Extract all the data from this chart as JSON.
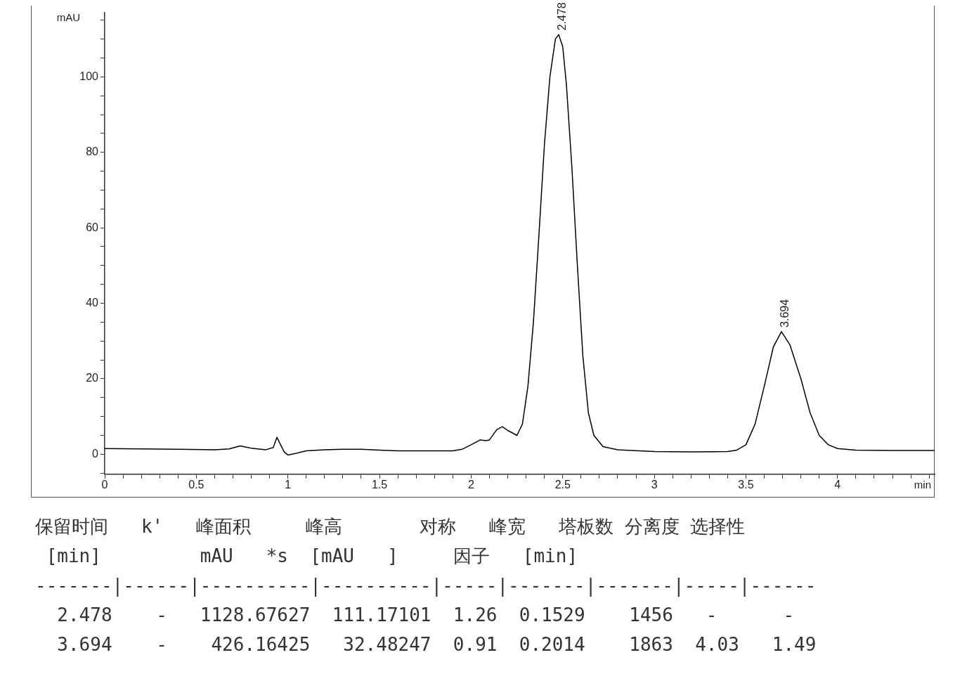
{
  "chart_data": {
    "type": "line",
    "xlabel": "min",
    "ylabel": "mAU",
    "xlim": [
      0,
      4.53
    ],
    "ylim": [
      -5.3,
      117
    ],
    "xticks": [
      0,
      {
        "value": 0.1,
        "label": null
      },
      {
        "value": 0.2,
        "label": null
      },
      {
        "value": 0.3,
        "label": null
      },
      {
        "value": 0.4,
        "label": null
      },
      0.5,
      {
        "value": 0.6,
        "label": null
      },
      {
        "value": 0.7,
        "label": null
      },
      {
        "value": 0.8,
        "label": null
      },
      {
        "value": 0.9,
        "label": null
      },
      1,
      {
        "value": 1.1,
        "label": null
      },
      {
        "value": 1.2,
        "label": null
      },
      {
        "value": 1.3,
        "label": null
      },
      {
        "value": 1.4,
        "label": null
      },
      1.5,
      {
        "value": 1.6,
        "label": null
      },
      {
        "value": 1.7,
        "label": null
      },
      {
        "value": 1.8,
        "label": null
      },
      {
        "value": 1.9,
        "label": null
      },
      2,
      {
        "value": 2.1,
        "label": null
      },
      {
        "value": 2.2,
        "label": null
      },
      {
        "value": 2.3,
        "label": null
      },
      {
        "value": 2.4,
        "label": null
      },
      2.5,
      {
        "value": 2.6,
        "label": null
      },
      {
        "value": 2.7,
        "label": null
      },
      {
        "value": 2.8,
        "label": null
      },
      {
        "value": 2.9,
        "label": null
      },
      3,
      {
        "value": 3.1,
        "label": null
      },
      {
        "value": 3.2,
        "label": null
      },
      {
        "value": 3.3,
        "label": null
      },
      {
        "value": 3.4,
        "label": null
      },
      3.5,
      {
        "value": 3.6,
        "label": null
      },
      {
        "value": 3.7,
        "label": null
      },
      {
        "value": 3.8,
        "label": null
      },
      {
        "value": 3.9,
        "label": null
      },
      4,
      {
        "value": 4.1,
        "label": null
      },
      {
        "value": 4.2,
        "label": null
      },
      {
        "value": 4.3,
        "label": null
      },
      {
        "value": 4.4,
        "label": null
      },
      {
        "value": 4.5,
        "label": null
      }
    ],
    "yticks": [
      {
        "value": -5,
        "label": null
      },
      0,
      {
        "value": 5,
        "label": null
      },
      {
        "value": 10,
        "label": null
      },
      {
        "value": 15,
        "label": null
      },
      20,
      {
        "value": 25,
        "label": null
      },
      {
        "value": 30,
        "label": null
      },
      {
        "value": 35,
        "label": null
      },
      40,
      {
        "value": 45,
        "label": null
      },
      {
        "value": 50,
        "label": null
      },
      {
        "value": 55,
        "label": null
      },
      60,
      {
        "value": 65,
        "label": null
      },
      {
        "value": 70,
        "label": null
      },
      {
        "value": 75,
        "label": null
      },
      80,
      {
        "value": 85,
        "label": null
      },
      {
        "value": 90,
        "label": null
      },
      {
        "value": 95,
        "label": null
      },
      100,
      {
        "value": 105,
        "label": null
      },
      {
        "value": 110,
        "label": null
      },
      {
        "value": 115,
        "label": null
      }
    ],
    "grid": false,
    "legend": false,
    "marker": "none",
    "line_style": "solid",
    "series": [
      {
        "color": "#000000",
        "x": [
          0,
          0.2,
          0.4,
          0.6,
          0.68,
          0.74,
          0.8,
          0.88,
          0.92,
          0.94,
          0.96,
          0.98,
          1.0,
          1.05,
          1.1,
          1.2,
          1.3,
          1.4,
          1.5,
          1.6,
          1.7,
          1.8,
          1.9,
          1.95,
          2.0,
          2.05,
          2.08,
          2.1,
          2.14,
          2.17,
          2.2,
          2.25,
          2.28,
          2.31,
          2.34,
          2.37,
          2.4,
          2.43,
          2.46,
          2.478,
          2.5,
          2.52,
          2.55,
          2.58,
          2.61,
          2.64,
          2.67,
          2.72,
          2.8,
          3.0,
          3.2,
          3.4,
          3.45,
          3.5,
          3.55,
          3.6,
          3.65,
          3.694,
          3.74,
          3.8,
          3.85,
          3.9,
          3.95,
          4.0,
          4.1,
          4.3,
          4.53
        ],
        "values": [
          1.5,
          1.4,
          1.3,
          1.2,
          1.4,
          2.2,
          1.6,
          1.2,
          1.8,
          4.5,
          2.5,
          0.6,
          -0.2,
          0.3,
          0.9,
          1.2,
          1.3,
          1.3,
          1.1,
          0.9,
          0.9,
          0.9,
          0.9,
          1.3,
          2.5,
          3.8,
          3.6,
          3.8,
          6.5,
          7.3,
          6.3,
          5,
          8,
          18,
          35,
          58,
          82,
          100,
          110,
          111.2,
          108,
          98,
          76,
          50,
          26,
          11,
          5,
          2,
          1.2,
          0.7,
          0.6,
          0.7,
          1.1,
          2.5,
          8,
          18,
          28.5,
          32.5,
          29,
          20,
          11,
          5,
          2.5,
          1.5,
          1.1,
          1.0,
          1.0
        ]
      }
    ],
    "annotations": [
      {
        "text": "2.478",
        "x": 2.478,
        "y": 111.17
      },
      {
        "text": "3.694",
        "x": 3.694,
        "y": 32.48
      },
      "保留时间   k'   峰面积     峰高       对称   峰宽   塔板数 分离度 选择性",
      " [min]         mAU   *s  [mAU   ]     因子   [min]",
      "-------|------|----------|----------|-----|-------|-------|-----|------",
      "  2.478    -   1128.67627  111.17101  1.26  0.1529    1456   -      -",
      "  3.694    -    426.16425   32.48247  0.91  0.2014    1863  4.03   1.49"
    ]
  }
}
